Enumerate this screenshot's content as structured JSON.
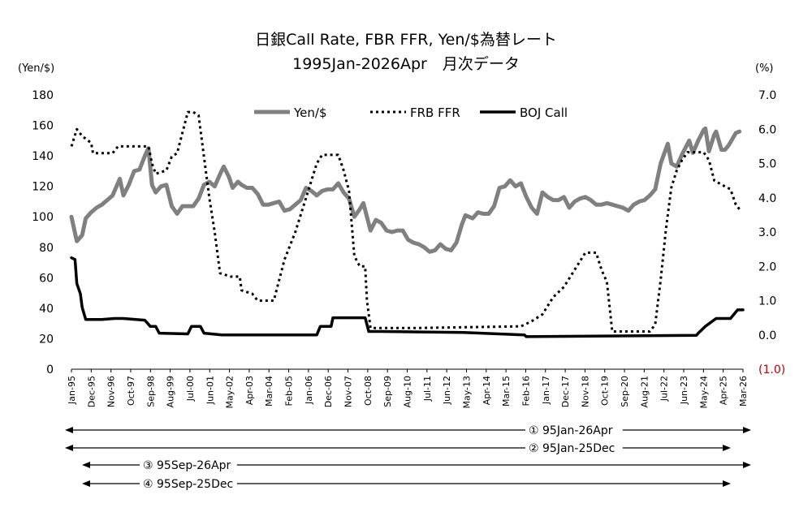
{
  "title_line1": "日銀Call Rate, FBR FFR, Yen/$為替レート",
  "title_line2": "1995Jan-2026Apr　月次データ",
  "y_left_unit": "(Yen/$)",
  "y_right_unit": "(%)",
  "arrow_labels": [
    "① 95Jan-26Apr",
    "② 95Jan-25Dec",
    "③ 95Sep-26Apr",
    "④ 95Sep-25Dec"
  ],
  "chart_data": {
    "type": "line",
    "title": "日銀Call Rate, FBR FFR, Yen/$為替レート",
    "subtitle": "1995Jan-2026Apr　月次データ",
    "x_range": [
      "1995-01",
      "2026-04"
    ],
    "x_tick_labels": [
      "Jan-95",
      "Dec-95",
      "Nov-96",
      "Oct-97",
      "Sep-98",
      "Aug-99",
      "Jul-00",
      "Jun-01",
      "May-02",
      "Apr-03",
      "Mar-04",
      "Feb-05",
      "Jan-06",
      "Dec-06",
      "Nov-07",
      "Oct-08",
      "Sep-09",
      "Aug-10",
      "Jul-11",
      "Jun-12",
      "May-13",
      "Apr-14",
      "Mar-15",
      "Feb-16",
      "Jan-17",
      "Dec-17",
      "Nov-18",
      "Oct-19",
      "Sep-20",
      "Aug-21",
      "Jul-22",
      "Jun-23",
      "May-24",
      "Apr-25",
      "Mar-26"
    ],
    "y_left": {
      "label": "(Yen/$)",
      "range": [
        0,
        180
      ],
      "ticks": [
        "0",
        "20",
        "40",
        "60",
        "80",
        "100",
        "120",
        "140",
        "160",
        "180"
      ]
    },
    "y_right": {
      "label": "(%)",
      "range": [
        -1.0,
        7.0
      ],
      "ticks": [
        "(1.0)",
        "0.0",
        "1.0",
        "2.0",
        "3.0",
        "4.0",
        "5.0",
        "6.0",
        "7.0"
      ],
      "negative_color": "#c00000"
    },
    "legend_position": "top-center",
    "series": [
      {
        "name": "Yen/$",
        "axis": "left",
        "color": "#808080",
        "style": "solid-thick",
        "points": [
          [
            "1995-01",
            100
          ],
          [
            "1995-04",
            84
          ],
          [
            "1995-07",
            88
          ],
          [
            "1995-09",
            99
          ],
          [
            "1995-12",
            103
          ],
          [
            "1996-03",
            106
          ],
          [
            "1996-06",
            108
          ],
          [
            "1996-12",
            114
          ],
          [
            "1997-04",
            125
          ],
          [
            "1997-06",
            114
          ],
          [
            "1997-09",
            121
          ],
          [
            "1997-12",
            130
          ],
          [
            "1998-03",
            131
          ],
          [
            "1998-06",
            140
          ],
          [
            "1998-08",
            145
          ],
          [
            "1998-10",
            121
          ],
          [
            "1998-12",
            116
          ],
          [
            "1999-03",
            120
          ],
          [
            "1999-06",
            121
          ],
          [
            "1999-09",
            107
          ],
          [
            "1999-12",
            102
          ],
          [
            "2000-03",
            107
          ],
          [
            "2000-06",
            107
          ],
          [
            "2000-09",
            107
          ],
          [
            "2000-12",
            112
          ],
          [
            "2001-03",
            121
          ],
          [
            "2001-06",
            123
          ],
          [
            "2001-09",
            120
          ],
          [
            "2001-12",
            128
          ],
          [
            "2002-02",
            133
          ],
          [
            "2002-05",
            126
          ],
          [
            "2002-07",
            119
          ],
          [
            "2002-10",
            123
          ],
          [
            "2002-12",
            121
          ],
          [
            "2003-03",
            119
          ],
          [
            "2003-06",
            119
          ],
          [
            "2003-09",
            115
          ],
          [
            "2003-12",
            108
          ],
          [
            "2004-03",
            108
          ],
          [
            "2004-06",
            109
          ],
          [
            "2004-09",
            110
          ],
          [
            "2004-12",
            104
          ],
          [
            "2005-03",
            105
          ],
          [
            "2005-06",
            108
          ],
          [
            "2005-09",
            111
          ],
          [
            "2005-12",
            119
          ],
          [
            "2006-03",
            117
          ],
          [
            "2006-06",
            114
          ],
          [
            "2006-09",
            117
          ],
          [
            "2006-12",
            118
          ],
          [
            "2007-03",
            118
          ],
          [
            "2007-06",
            122
          ],
          [
            "2007-09",
            116
          ],
          [
            "2007-12",
            112
          ],
          [
            "2008-03",
            100
          ],
          [
            "2008-06",
            105
          ],
          [
            "2008-08",
            109
          ],
          [
            "2008-10",
            100
          ],
          [
            "2008-12",
            91
          ],
          [
            "2009-03",
            98
          ],
          [
            "2009-06",
            96
          ],
          [
            "2009-09",
            91
          ],
          [
            "2009-12",
            90
          ],
          [
            "2010-03",
            91
          ],
          [
            "2010-06",
            91
          ],
          [
            "2010-09",
            85
          ],
          [
            "2010-12",
            83
          ],
          [
            "2011-03",
            82
          ],
          [
            "2011-06",
            80
          ],
          [
            "2011-09",
            77
          ],
          [
            "2011-12",
            78
          ],
          [
            "2012-03",
            82
          ],
          [
            "2012-06",
            79
          ],
          [
            "2012-09",
            78
          ],
          [
            "2012-12",
            83
          ],
          [
            "2013-03",
            95
          ],
          [
            "2013-05",
            101
          ],
          [
            "2013-09",
            99
          ],
          [
            "2013-12",
            103
          ],
          [
            "2014-03",
            102
          ],
          [
            "2014-06",
            102
          ],
          [
            "2014-09",
            107
          ],
          [
            "2014-12",
            119
          ],
          [
            "2015-03",
            120
          ],
          [
            "2015-06",
            124
          ],
          [
            "2015-09",
            120
          ],
          [
            "2015-12",
            122
          ],
          [
            "2016-03",
            113
          ],
          [
            "2016-06",
            106
          ],
          [
            "2016-09",
            102
          ],
          [
            "2016-12",
            116
          ],
          [
            "2017-03",
            113
          ],
          [
            "2017-06",
            111
          ],
          [
            "2017-09",
            111
          ],
          [
            "2017-12",
            113
          ],
          [
            "2018-03",
            106
          ],
          [
            "2018-06",
            110
          ],
          [
            "2018-09",
            112
          ],
          [
            "2018-12",
            113
          ],
          [
            "2019-03",
            111
          ],
          [
            "2019-06",
            108
          ],
          [
            "2019-09",
            108
          ],
          [
            "2019-12",
            109
          ],
          [
            "2020-03",
            108
          ],
          [
            "2020-06",
            107
          ],
          [
            "2020-09",
            106
          ],
          [
            "2020-12",
            104
          ],
          [
            "2021-03",
            108
          ],
          [
            "2021-06",
            110
          ],
          [
            "2021-09",
            111
          ],
          [
            "2021-12",
            114
          ],
          [
            "2022-03",
            118
          ],
          [
            "2022-06",
            135
          ],
          [
            "2022-10",
            148
          ],
          [
            "2022-12",
            135
          ],
          [
            "2023-03",
            133
          ],
          [
            "2023-06",
            141
          ],
          [
            "2023-10",
            150
          ],
          [
            "2023-12",
            142
          ],
          [
            "2024-03",
            150
          ],
          [
            "2024-06",
            157
          ],
          [
            "2024-07",
            158
          ],
          [
            "2024-09",
            143
          ],
          [
            "2024-12",
            154
          ],
          [
            "2025-01",
            156
          ],
          [
            "2025-04",
            144
          ],
          [
            "2025-06",
            144
          ],
          [
            "2025-08",
            147
          ],
          [
            "2025-10",
            151
          ],
          [
            "2025-12",
            155
          ],
          [
            "2026-02",
            156
          ]
        ]
      },
      {
        "name": "FRB FFR",
        "axis": "right",
        "color": "#000000",
        "style": "dotted",
        "points": [
          [
            "1995-01",
            5.5
          ],
          [
            "1995-04",
            6.0
          ],
          [
            "1995-07",
            5.8
          ],
          [
            "1995-12",
            5.6
          ],
          [
            "1996-01",
            5.3
          ],
          [
            "1996-06",
            5.3
          ],
          [
            "1996-12",
            5.3
          ],
          [
            "1997-03",
            5.5
          ],
          [
            "1997-12",
            5.5
          ],
          [
            "1998-06",
            5.5
          ],
          [
            "1998-08",
            5.5
          ],
          [
            "1998-10",
            5.0
          ],
          [
            "1998-12",
            4.7
          ],
          [
            "1999-06",
            4.8
          ],
          [
            "1999-09",
            5.2
          ],
          [
            "1999-12",
            5.3
          ],
          [
            "2000-03",
            5.9
          ],
          [
            "2000-06",
            6.5
          ],
          [
            "2000-09",
            6.5
          ],
          [
            "2000-12",
            6.4
          ],
          [
            "2001-03",
            5.2
          ],
          [
            "2001-06",
            4.0
          ],
          [
            "2001-09",
            3.0
          ],
          [
            "2001-12",
            1.8
          ],
          [
            "2002-06",
            1.7
          ],
          [
            "2002-11",
            1.7
          ],
          [
            "2002-12",
            1.3
          ],
          [
            "2003-06",
            1.2
          ],
          [
            "2003-09",
            1.0
          ],
          [
            "2003-12",
            1.0
          ],
          [
            "2004-06",
            1.0
          ],
          [
            "2004-09",
            1.6
          ],
          [
            "2004-12",
            2.2
          ],
          [
            "2005-06",
            3.0
          ],
          [
            "2005-12",
            4.0
          ],
          [
            "2006-06",
            5.0
          ],
          [
            "2006-09",
            5.25
          ],
          [
            "2007-06",
            5.25
          ],
          [
            "2007-09",
            4.8
          ],
          [
            "2007-12",
            4.2
          ],
          [
            "2008-03",
            2.3
          ],
          [
            "2008-06",
            2.0
          ],
          [
            "2008-09",
            2.0
          ],
          [
            "2008-10",
            1.0
          ],
          [
            "2008-12",
            0.2
          ],
          [
            "2009-06",
            0.2
          ],
          [
            "2010-12",
            0.2
          ],
          [
            "2015-12",
            0.25
          ],
          [
            "2016-06",
            0.4
          ],
          [
            "2016-12",
            0.6
          ],
          [
            "2017-06",
            1.1
          ],
          [
            "2017-12",
            1.4
          ],
          [
            "2018-06",
            1.9
          ],
          [
            "2018-12",
            2.4
          ],
          [
            "2019-06",
            2.4
          ],
          [
            "2019-09",
            1.9
          ],
          [
            "2019-12",
            1.55
          ],
          [
            "2020-03",
            0.1
          ],
          [
            "2020-06",
            0.1
          ],
          [
            "2021-12",
            0.1
          ],
          [
            "2022-03",
            0.3
          ],
          [
            "2022-06",
            1.6
          ],
          [
            "2022-09",
            3.1
          ],
          [
            "2022-12",
            4.3
          ],
          [
            "2023-03",
            4.8
          ],
          [
            "2023-06",
            5.1
          ],
          [
            "2023-09",
            5.33
          ],
          [
            "2024-06",
            5.33
          ],
          [
            "2024-09",
            5.1
          ],
          [
            "2024-12",
            4.5
          ],
          [
            "2025-06",
            4.33
          ],
          [
            "2025-09",
            4.25
          ],
          [
            "2025-12",
            3.8
          ],
          [
            "2026-03",
            3.6
          ]
        ]
      },
      {
        "name": "BOJ Call",
        "axis": "right",
        "color": "#000000",
        "style": "solid",
        "points": [
          [
            "1995-01",
            2.25
          ],
          [
            "1995-03",
            2.2
          ],
          [
            "1995-04",
            1.5
          ],
          [
            "1995-06",
            1.2
          ],
          [
            "1995-07",
            0.8
          ],
          [
            "1995-09",
            0.45
          ],
          [
            "1995-12",
            0.45
          ],
          [
            "1996-06",
            0.45
          ],
          [
            "1997-01",
            0.48
          ],
          [
            "1997-06",
            0.48
          ],
          [
            "1998-01",
            0.45
          ],
          [
            "1998-06",
            0.43
          ],
          [
            "1998-09",
            0.25
          ],
          [
            "1998-12",
            0.25
          ],
          [
            "1999-02",
            0.05
          ],
          [
            "2000-06",
            0.03
          ],
          [
            "2000-08",
            0.25
          ],
          [
            "2001-01",
            0.25
          ],
          [
            "2001-03",
            0.05
          ],
          [
            "2002-01",
            0.0
          ],
          [
            "2006-06",
            0.0
          ],
          [
            "2006-08",
            0.25
          ],
          [
            "2007-02",
            0.25
          ],
          [
            "2007-03",
            0.5
          ],
          [
            "2008-09",
            0.5
          ],
          [
            "2008-11",
            0.1
          ],
          [
            "2009-06",
            0.1
          ],
          [
            "2013-04",
            0.07
          ],
          [
            "2016-02",
            0.0
          ],
          [
            "2016-03",
            -0.05
          ],
          [
            "2024-02",
            -0.01
          ],
          [
            "2024-03",
            0.05
          ],
          [
            "2024-07",
            0.25
          ],
          [
            "2025-01",
            0.48
          ],
          [
            "2025-09",
            0.48
          ],
          [
            "2026-01",
            0.73
          ],
          [
            "2026-04",
            0.73
          ]
        ]
      }
    ]
  }
}
